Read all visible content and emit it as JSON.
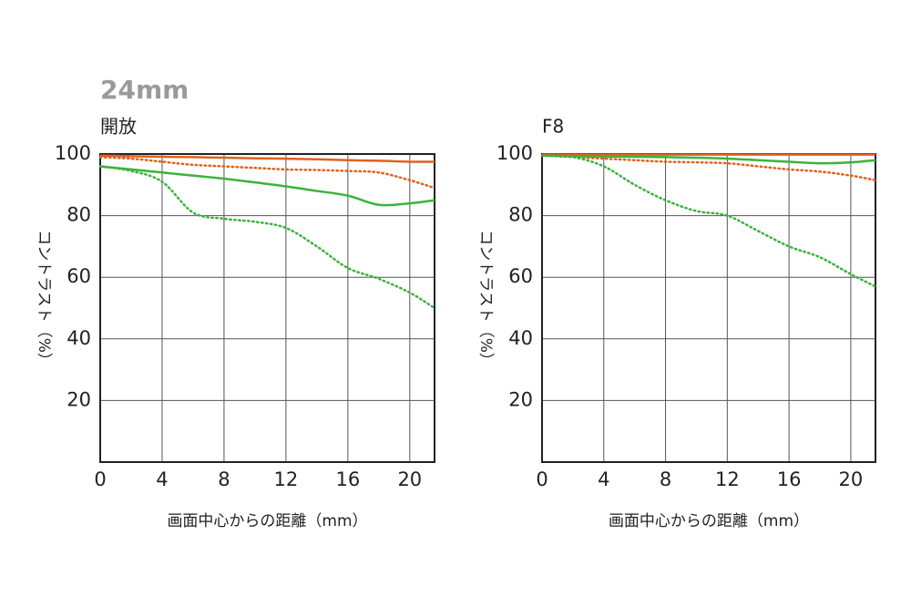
{
  "title": "24mm",
  "chart_data": [
    {
      "type": "line",
      "subtitle": "開放",
      "ylabel": "コントラスト（%）",
      "xlabel": "画面中心からの距離（mm）",
      "x": [
        0,
        2,
        4,
        6,
        8,
        10,
        12,
        14,
        16,
        18,
        20,
        21.6
      ],
      "xlim": [
        0,
        21.6
      ],
      "xticks": [
        0,
        4,
        8,
        12,
        16,
        20
      ],
      "ylim": [
        0,
        100
      ],
      "yticks": [
        20,
        40,
        60,
        80,
        100
      ],
      "grid": true,
      "series": [
        {
          "color": "#e0621e",
          "dashed": false,
          "values": [
            99.5,
            99.3,
            99.1,
            99,
            98.8,
            98.6,
            98.5,
            98.3,
            98,
            97.8,
            97.5,
            97.5
          ]
        },
        {
          "color": "#e0621e",
          "dashed": true,
          "values": [
            99,
            98.5,
            97.5,
            96.5,
            96,
            95.5,
            95,
            94.8,
            94.5,
            94,
            91.5,
            89
          ]
        },
        {
          "color": "#3cb33c",
          "dashed": false,
          "values": [
            96,
            95,
            94,
            93,
            92,
            90.8,
            89.5,
            88,
            86.5,
            83.5,
            84,
            85
          ]
        },
        {
          "color": "#3cb33c",
          "dashed": true,
          "values": [
            96,
            94.5,
            91,
            81,
            79,
            78,
            76,
            70,
            63,
            59.5,
            55,
            50
          ]
        }
      ]
    },
    {
      "type": "line",
      "subtitle": "F8",
      "ylabel": "コントラスト（%）",
      "xlabel": "画面中心からの距離（mm）",
      "x": [
        0,
        2,
        4,
        6,
        8,
        10,
        12,
        14,
        16,
        18,
        20,
        21.6
      ],
      "xlim": [
        0,
        21.6
      ],
      "xticks": [
        0,
        4,
        8,
        12,
        16,
        20
      ],
      "ylim": [
        0,
        100
      ],
      "yticks": [
        20,
        40,
        60,
        80,
        100
      ],
      "grid": true,
      "series": [
        {
          "color": "#e0621e",
          "dashed": false,
          "values": [
            99.8,
            99.8,
            99.8,
            99.8,
            99.8,
            99.8,
            99.8,
            99.8,
            99.8,
            99.8,
            99.8,
            99.8
          ]
        },
        {
          "color": "#e0621e",
          "dashed": true,
          "values": [
            99.5,
            99,
            98.5,
            98,
            97.5,
            97.3,
            97,
            96,
            95,
            94.3,
            93,
            91.5
          ]
        },
        {
          "color": "#3cb33c",
          "dashed": false,
          "values": [
            99.5,
            99.3,
            99.2,
            99.1,
            99,
            98.8,
            98.5,
            98,
            97.5,
            97,
            97.3,
            98
          ]
        },
        {
          "color": "#3cb33c",
          "dashed": true,
          "values": [
            99.5,
            99,
            96,
            90,
            85,
            81.5,
            80,
            75,
            70,
            66.5,
            61,
            57
          ]
        }
      ]
    }
  ]
}
